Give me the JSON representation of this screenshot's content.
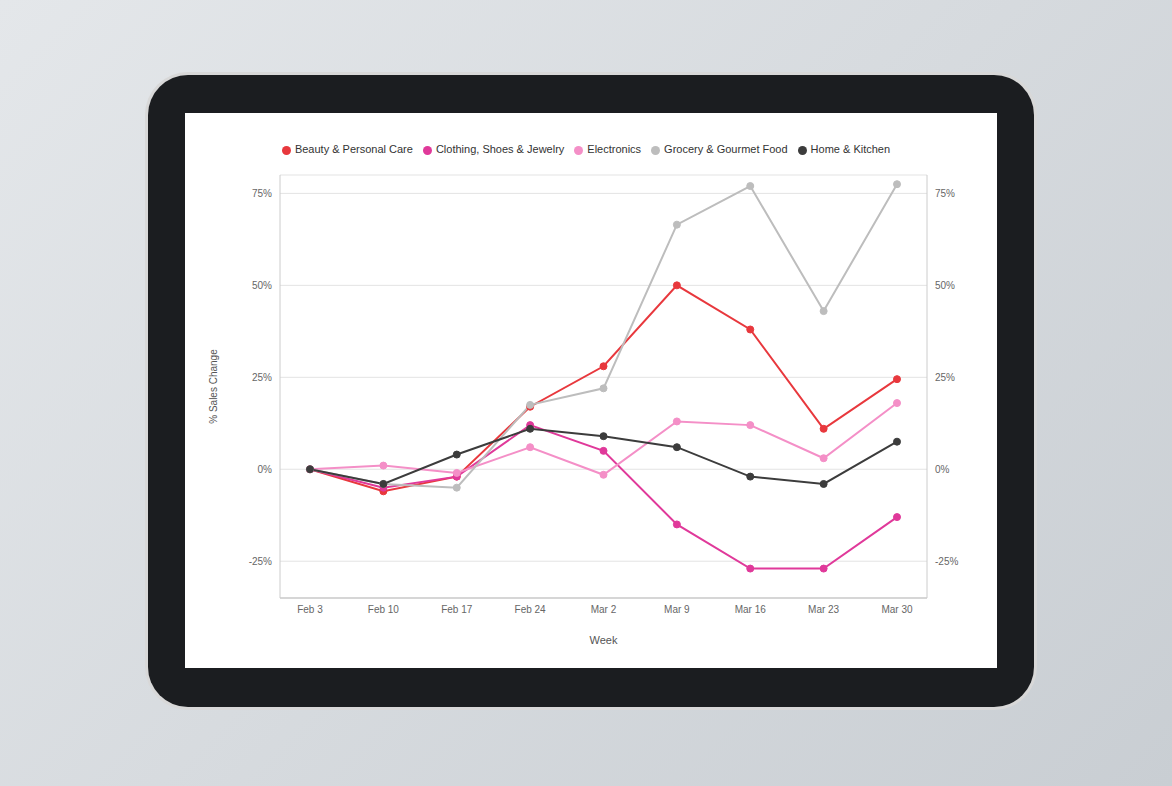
{
  "chart_data": {
    "type": "line",
    "x_label": "Week",
    "y_label": "% Sales Change",
    "categories": [
      "Feb 3",
      "Feb 10",
      "Feb 17",
      "Feb 24",
      "Mar 2",
      "Mar 9",
      "Mar 16",
      "Mar 23",
      "Mar 30"
    ],
    "series": [
      {
        "name": "Beauty & Personal Care",
        "color": "#e8383d",
        "values": [
          0,
          -6,
          -2,
          17,
          28,
          50,
          38,
          11,
          24.5
        ]
      },
      {
        "name": "Clothing, Shoes & Jewelry",
        "color": "#e0399a",
        "values": [
          0,
          -5,
          -2,
          12,
          5,
          -15,
          -27,
          -27,
          -13
        ]
      },
      {
        "name": "Electronics",
        "color": "#f48fc7",
        "values": [
          0,
          1,
          -1,
          6,
          -1.5,
          13,
          12,
          3,
          18
        ]
      },
      {
        "name": "Grocery & Gourmet Food",
        "color": "#bdbdbd",
        "values": [
          0,
          -4,
          -5,
          17.5,
          22,
          66.5,
          77,
          43,
          77.5
        ]
      },
      {
        "name": "Home & Kitchen",
        "color": "#3c3c3c",
        "values": [
          0,
          -4,
          4,
          11,
          9,
          6,
          -2,
          -4,
          7.5
        ]
      }
    ],
    "ylim": [
      -35,
      80
    ],
    "yticks": [
      {
        "value": -25,
        "label": "-25%"
      },
      {
        "value": 0,
        "label": "0%"
      },
      {
        "value": 25,
        "label": "25%"
      },
      {
        "value": 50,
        "label": "50%"
      },
      {
        "value": 75,
        "label": "75%"
      }
    ],
    "y2lim": [
      -35,
      80
    ],
    "y2ticks": [
      {
        "value": -25,
        "label": "-25%"
      },
      {
        "value": 0,
        "label": "0%"
      },
      {
        "value": 25,
        "label": "25%"
      },
      {
        "value": 50,
        "label": "50%"
      },
      {
        "value": 75,
        "label": "75%"
      }
    ],
    "grid": true,
    "legend": "top",
    "marker": "circle"
  }
}
